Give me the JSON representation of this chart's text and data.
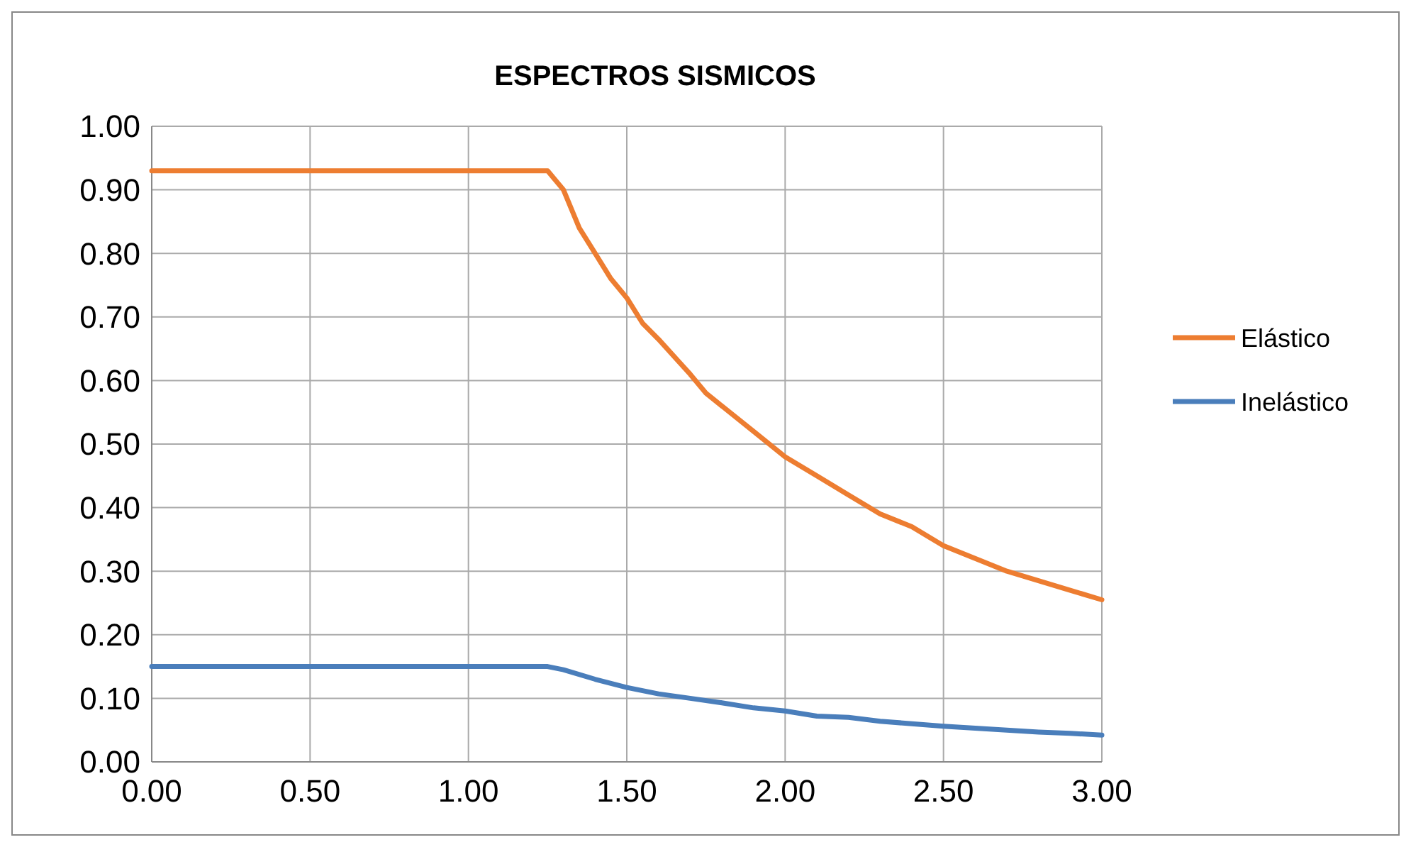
{
  "chart_data": {
    "type": "line",
    "title": "ESPECTROS SISMICOS",
    "xlim": [
      0,
      3
    ],
    "xticks": [
      {
        "value": 0,
        "label": "0.00"
      },
      {
        "value": 0.5,
        "label": "0.50"
      },
      {
        "value": 1,
        "label": "1.00"
      },
      {
        "value": 1.5,
        "label": "1.50"
      },
      {
        "value": 2,
        "label": "2.00"
      },
      {
        "value": 2.5,
        "label": "2.50"
      },
      {
        "value": 3,
        "label": "3.00"
      }
    ],
    "ylim": [
      0,
      1
    ],
    "yticks": [
      {
        "value": 0,
        "label": "0.00"
      },
      {
        "value": 0.1,
        "label": "0.10"
      },
      {
        "value": 0.2,
        "label": "0.20"
      },
      {
        "value": 0.3,
        "label": "0.30"
      },
      {
        "value": 0.4,
        "label": "0.40"
      },
      {
        "value": 0.5,
        "label": "0.50"
      },
      {
        "value": 0.6,
        "label": "0.60"
      },
      {
        "value": 0.7,
        "label": "0.70"
      },
      {
        "value": 0.8,
        "label": "0.80"
      },
      {
        "value": 0.9,
        "label": "0.90"
      },
      {
        "value": 1,
        "label": "1.00"
      }
    ],
    "grid": true,
    "legend": "right",
    "series": [
      {
        "name": "Elástico",
        "color": "#ed7d31",
        "x": [
          0,
          1.25,
          1.3,
          1.35,
          1.4,
          1.45,
          1.5,
          1.55,
          1.6,
          1.7,
          1.75,
          1.8,
          1.9,
          2.0,
          2.1,
          2.2,
          2.3,
          2.4,
          2.5,
          2.6,
          2.7,
          2.8,
          2.9,
          3.0
        ],
        "values": [
          0.93,
          0.93,
          0.9,
          0.84,
          0.8,
          0.76,
          0.73,
          0.69,
          0.665,
          0.61,
          0.58,
          0.56,
          0.52,
          0.48,
          0.45,
          0.42,
          0.39,
          0.37,
          0.34,
          0.32,
          0.3,
          0.285,
          0.27,
          0.255
        ]
      },
      {
        "name": "Inelástico",
        "color": "#4a7ebb",
        "x": [
          0,
          1.25,
          1.3,
          1.4,
          1.5,
          1.6,
          1.7,
          1.8,
          1.9,
          2.0,
          2.1,
          2.2,
          2.3,
          2.4,
          2.5,
          2.6,
          2.7,
          2.8,
          2.9,
          3.0
        ],
        "values": [
          0.15,
          0.15,
          0.145,
          0.13,
          0.117,
          0.107,
          0.1,
          0.093,
          0.085,
          0.08,
          0.072,
          0.07,
          0.064,
          0.06,
          0.056,
          0.053,
          0.05,
          0.047,
          0.045,
          0.042
        ]
      }
    ]
  }
}
